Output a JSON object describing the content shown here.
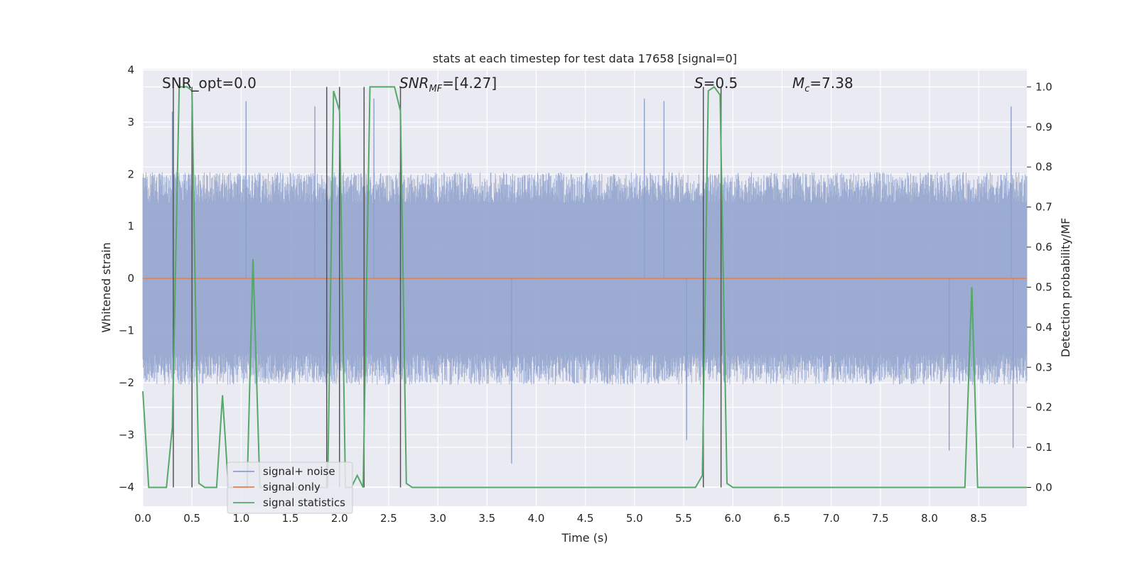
{
  "chart_data": {
    "type": "line",
    "title": "stats at each timestep for test data 17658 [signal=0]",
    "xlabel": "Time (s)",
    "ylabel_left": "Whitened strain",
    "ylabel_right": "Detection probability/MF",
    "xlim": [
      0.0,
      8.99
    ],
    "ylim_left": [
      -4.37,
      4.02
    ],
    "ylim_right": [
      -0.047,
      1.045
    ],
    "xticks": [
      0.0,
      0.5,
      1.0,
      1.5,
      2.0,
      2.5,
      3.0,
      3.5,
      4.0,
      4.5,
      5.0,
      5.5,
      6.0,
      6.5,
      7.0,
      7.5,
      8.0,
      8.5
    ],
    "xtick_labels": [
      "0.0",
      "0.5",
      "1.0",
      "1.5",
      "2.0",
      "2.5",
      "3.0",
      "3.5",
      "4.0",
      "4.5",
      "5.0",
      "5.5",
      "6.0",
      "6.5",
      "7.0",
      "7.5",
      "8.0",
      "8.5"
    ],
    "yticks_left": [
      4,
      3,
      2,
      1,
      0,
      -1,
      -2,
      -3,
      -4
    ],
    "ytick_labels_left": [
      "4",
      "3",
      "2",
      "1",
      "0",
      "−1",
      "−2",
      "−3",
      "−4"
    ],
    "yticks_right": [
      1.0,
      0.9,
      0.8,
      0.7,
      0.6,
      0.5,
      0.4,
      0.3,
      0.2,
      0.1,
      0.0
    ],
    "ytick_labels_right": [
      "1.0",
      "0.9",
      "0.8",
      "0.7",
      "0.6",
      "0.5",
      "0.4",
      "0.3",
      "0.2",
      "0.1",
      "0.0"
    ],
    "grid": true,
    "legend_position": "lower-left",
    "annotations": {
      "snr_opt": "SNR_opt=0.0",
      "snr_mf_sym": "SNR",
      "snr_mf_sub": "MF",
      "snr_mf_val": "=[4.27]",
      "s_sym": "S",
      "s_val": "=0.5",
      "mc_sym": "M",
      "mc_sub": "c",
      "mc_val": "=7.38"
    },
    "series": [
      {
        "name": "signal+ noise",
        "color": "#8da0cb",
        "kind": "noise",
        "typical_envelope": [
          -1.7,
          1.7
        ],
        "notable_spikes": [
          {
            "t": 0.3,
            "v": 3.2
          },
          {
            "t": 1.05,
            "v": 3.4
          },
          {
            "t": 1.75,
            "v": 3.3
          },
          {
            "t": 2.35,
            "v": 3.45
          },
          {
            "t": 3.75,
            "v": -3.55
          },
          {
            "t": 5.1,
            "v": 3.45
          },
          {
            "t": 5.3,
            "v": 3.4
          },
          {
            "t": 5.53,
            "v": -3.1
          },
          {
            "t": 8.2,
            "v": -3.3
          },
          {
            "t": 8.85,
            "v": -3.25
          },
          {
            "t": 8.83,
            "v": 3.3
          }
        ]
      },
      {
        "name": "signal only",
        "color": "#dd8452",
        "kind": "flat",
        "x": [
          0.0,
          8.99
        ],
        "y": [
          0.0,
          0.0
        ]
      },
      {
        "name": "signal statistics",
        "color": "#55a868",
        "axis": "right",
        "x": [
          0.0,
          0.06,
          0.12,
          0.24,
          0.3,
          0.37,
          0.4,
          0.45,
          0.5,
          0.53,
          0.57,
          0.63,
          0.68,
          0.75,
          0.81,
          0.87,
          0.94,
          1.0,
          1.06,
          1.12,
          1.19,
          1.25,
          1.31,
          1.38,
          1.44,
          1.5,
          1.56,
          1.63,
          1.69,
          1.75,
          1.81,
          1.87,
          1.88,
          1.94,
          2.0,
          2.06,
          2.12,
          2.18,
          2.24,
          2.31,
          2.37,
          2.43,
          2.49,
          2.56,
          2.62,
          2.68,
          2.74,
          2.81,
          5.62,
          5.69,
          5.75,
          5.81,
          5.87,
          5.94,
          6.0,
          6.06,
          8.36,
          8.43,
          8.49,
          8.99
        ],
        "y": [
          0.24,
          0.0,
          0.0,
          0.0,
          0.15,
          1.0,
          1.0,
          1.0,
          0.99,
          0.54,
          0.01,
          0.0,
          0.0,
          0.0,
          0.23,
          0.0,
          0.0,
          0.0,
          0.0,
          0.57,
          0.0,
          0.0,
          0.0,
          0.0,
          0.0,
          0.0,
          0.0,
          0.0,
          0.0,
          0.0,
          0.0,
          0.0,
          0.0,
          0.99,
          0.94,
          0.0,
          0.0,
          0.03,
          0.0,
          1.0,
          1.0,
          1.0,
          1.0,
          1.0,
          0.94,
          0.01,
          0.0,
          0.0,
          0.0,
          0.03,
          0.99,
          1.0,
          0.98,
          0.01,
          0.0,
          0.0,
          0.0,
          0.5,
          0.0,
          0.0
        ]
      },
      {
        "name": "detection markers",
        "color": "#555555",
        "kind": "vlines",
        "x": [
          0.31,
          0.5,
          1.87,
          2.0,
          2.25,
          2.62,
          5.7,
          5.88
        ]
      }
    ]
  }
}
